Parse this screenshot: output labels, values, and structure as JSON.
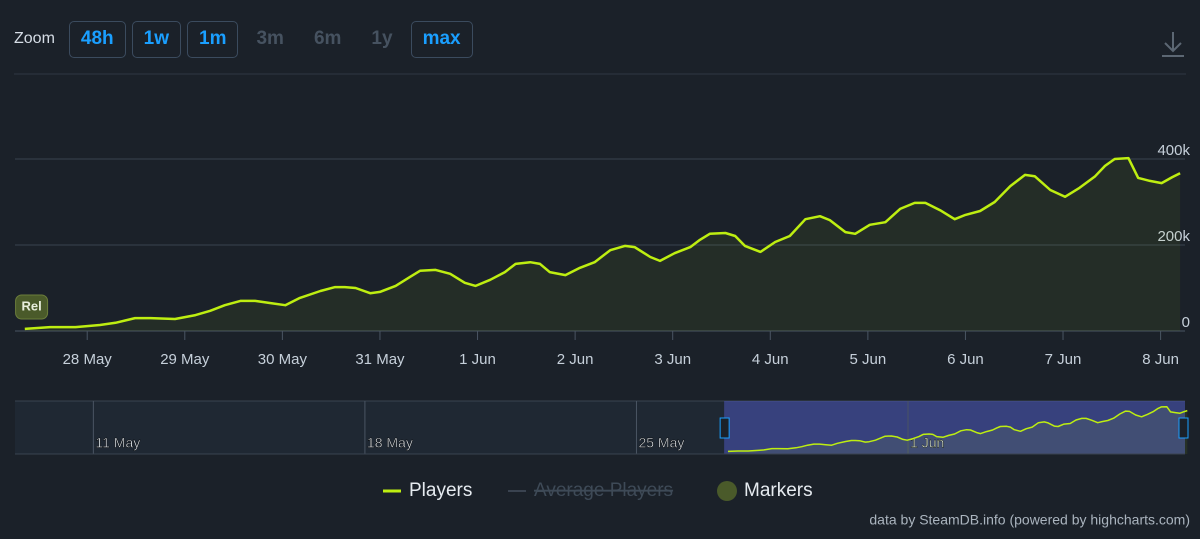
{
  "chart_data": {
    "type": "line",
    "zoom": {
      "label": "Zoom",
      "buttons": [
        "48h",
        "1w",
        "1m",
        "3m",
        "6m",
        "1y",
        "max"
      ],
      "enabled": [
        true,
        true,
        true,
        false,
        false,
        false,
        true
      ]
    },
    "x": [
      27.36,
      27.62,
      27.88,
      28.13,
      28.29,
      28.49,
      28.65,
      28.9,
      29.11,
      29.26,
      29.41,
      29.57,
      29.72,
      29.88,
      30.03,
      30.18,
      30.39,
      30.54,
      30.64,
      30.75,
      30.9,
      31.0,
      31.16,
      31.31,
      31.41,
      31.57,
      31.72,
      31.87,
      31.98,
      32.13,
      32.28,
      32.39,
      32.54,
      32.64,
      32.74,
      32.9,
      33.05,
      33.2,
      33.36,
      33.51,
      33.61,
      33.77,
      33.87,
      34.02,
      34.18,
      34.28,
      34.38,
      34.54,
      34.64,
      34.74,
      34.9,
      35.05,
      35.2,
      35.36,
      35.51,
      35.61,
      35.77,
      35.87,
      36.02,
      36.18,
      36.33,
      36.48,
      36.59,
      36.74,
      36.89,
      37.0,
      37.15,
      37.3,
      37.46,
      37.61,
      37.71,
      37.87,
      38.02,
      38.17,
      38.33,
      38.43,
      38.53,
      38.67,
      38.77,
      38.89,
      39.01,
      39.12,
      39.2
    ],
    "series": [
      {
        "name": "Players",
        "color": "#beee11",
        "values": [
          5000,
          9000,
          9000,
          14000,
          19000,
          30000,
          30000,
          28000,
          37000,
          47000,
          60000,
          70000,
          70000,
          65000,
          60000,
          77000,
          93000,
          102000,
          102000,
          100000,
          88000,
          91000,
          105000,
          126000,
          140000,
          142000,
          133000,
          112000,
          105000,
          119000,
          137000,
          156000,
          160000,
          156000,
          137000,
          130000,
          147000,
          160000,
          188000,
          198000,
          195000,
          172000,
          163000,
          181000,
          195000,
          212000,
          226000,
          228000,
          221000,
          198000,
          184000,
          207000,
          221000,
          260000,
          267000,
          258000,
          230000,
          226000,
          247000,
          253000,
          284000,
          298000,
          298000,
          281000,
          260000,
          270000,
          279000,
          300000,
          337000,
          363000,
          360000,
          328000,
          312000,
          333000,
          360000,
          384000,
          400000,
          402000,
          356000,
          349000,
          344000,
          358000,
          367000
        ]
      }
    ],
    "average_series": {
      "name": "Average Players",
      "visible": false
    },
    "markers": {
      "name": "Markers",
      "color": "#4a5a2a",
      "items": [
        {
          "label": "Rel",
          "x": 27.43
        }
      ]
    },
    "xlim": [
      27.26,
      39.25
    ],
    "xticks": [
      {
        "value": 28,
        "label": "28 May"
      },
      {
        "value": 29,
        "label": "29 May"
      },
      {
        "value": 30,
        "label": "30 May"
      },
      {
        "value": 31,
        "label": "31 May"
      },
      {
        "value": 32,
        "label": "1 Jun"
      },
      {
        "value": 33,
        "label": "2 Jun"
      },
      {
        "value": 34,
        "label": "3 Jun"
      },
      {
        "value": 35,
        "label": "4 Jun"
      },
      {
        "value": 36,
        "label": "5 Jun"
      },
      {
        "value": 37,
        "label": "6 Jun"
      },
      {
        "value": 38,
        "label": "7 Jun"
      },
      {
        "value": 39,
        "label": "8 Jun"
      }
    ],
    "ylim": [
      0,
      600000
    ],
    "yticks": [
      0,
      {
        "value": 200000,
        "label": "200k"
      },
      {
        "value": 400000,
        "label": "400k"
      }
    ],
    "grid": true,
    "navigator": {
      "xlim": [
        8.98,
        39.14
      ],
      "ylim": [
        0,
        470000
      ],
      "xticks": [
        {
          "value": 11,
          "label": "11 May"
        },
        {
          "value": 18,
          "label": "18 May"
        },
        {
          "value": 25,
          "label": "25 May"
        },
        {
          "value": 32,
          "label": "1 Jun"
        }
      ]
    },
    "credit": "data by SteamDB.info (powered by highcharts.com)"
  }
}
